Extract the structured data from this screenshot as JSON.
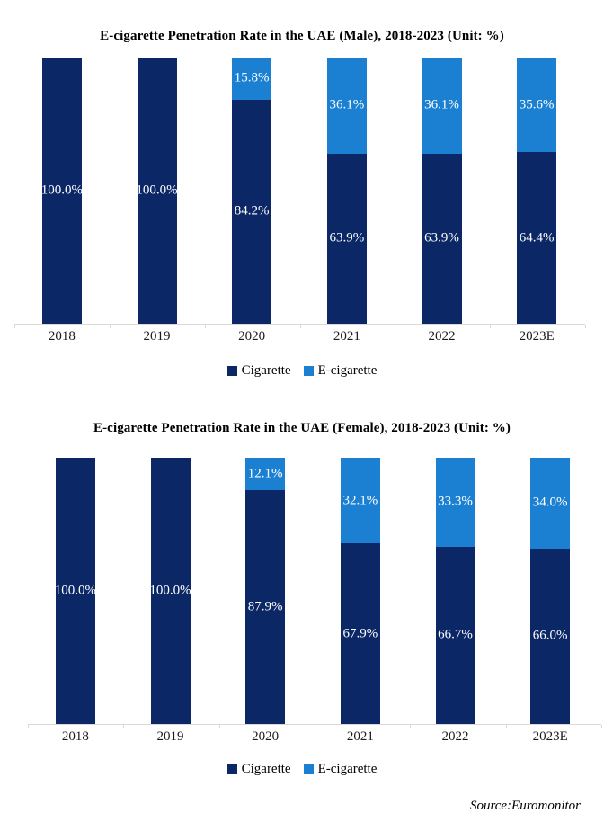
{
  "colors": {
    "cigarette": "#0c2766",
    "ecigarette": "#1b80d2",
    "axis_line": "#d9d9d9",
    "data_label_text": "#ffffff",
    "tick_label_text": "#1a1a1a"
  },
  "legend": {
    "items": [
      {
        "label": "Cigarette",
        "color_key": "cigarette"
      },
      {
        "label": "E-cigarette",
        "color_key": "ecigarette"
      }
    ]
  },
  "source": "Source:Euromonitor",
  "chart_data": [
    {
      "type": "bar",
      "stacked": true,
      "title": "E-cigarette Penetration Rate in the UAE (Male), 2018-2023 (Unit: %)",
      "categories": [
        "2018",
        "2019",
        "2020",
        "2021",
        "2022",
        "2023E"
      ],
      "series": [
        {
          "name": "Cigarette",
          "values": [
            100.0,
            100.0,
            84.2,
            63.9,
            63.9,
            64.4
          ]
        },
        {
          "name": "E-cigarette",
          "values": [
            0.0,
            0.0,
            15.8,
            36.1,
            36.1,
            35.6
          ]
        }
      ],
      "unit": "%",
      "ylim": [
        0,
        100
      ],
      "grid": false,
      "data_labels": true,
      "legend_position": "bottom"
    },
    {
      "type": "bar",
      "stacked": true,
      "title": "E-cigarette Penetration Rate in the UAE (Female), 2018-2023 (Unit: %)",
      "categories": [
        "2018",
        "2019",
        "2020",
        "2021",
        "2022",
        "2023E"
      ],
      "series": [
        {
          "name": "Cigarette",
          "values": [
            100.0,
            100.0,
            87.9,
            67.9,
            66.7,
            66.0
          ]
        },
        {
          "name": "E-cigarette",
          "values": [
            0.0,
            0.0,
            12.1,
            32.1,
            33.3,
            34.0
          ]
        }
      ],
      "unit": "%",
      "ylim": [
        0,
        100
      ],
      "grid": false,
      "data_labels": true,
      "legend_position": "bottom"
    }
  ]
}
